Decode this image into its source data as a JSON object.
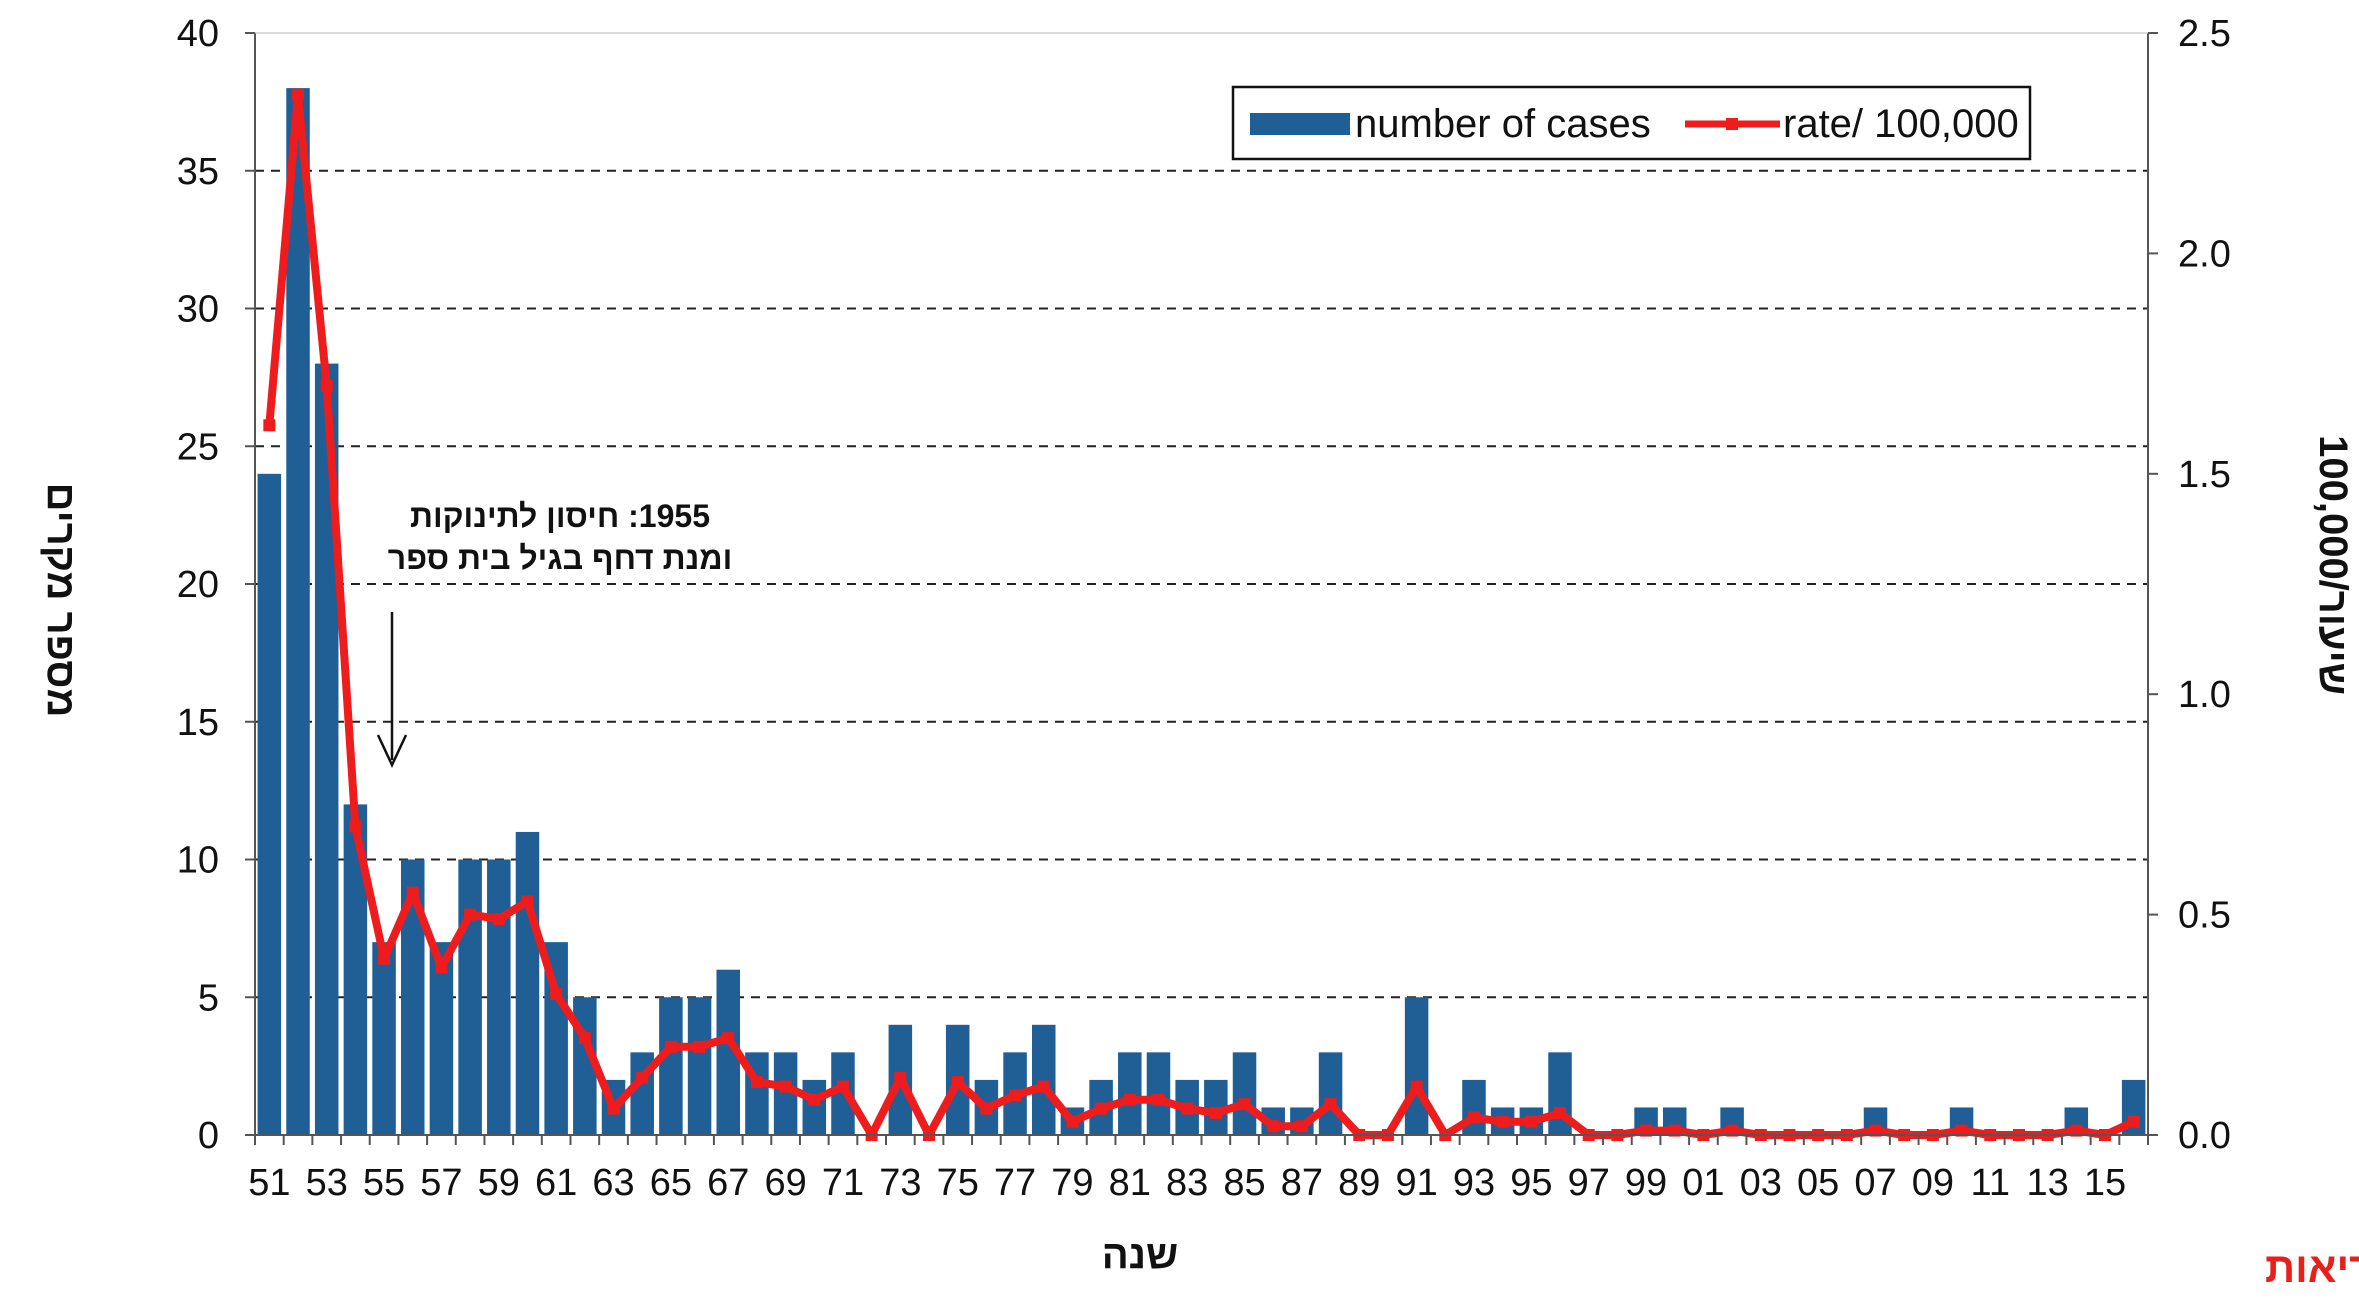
{
  "chart_data": {
    "type": "bar",
    "categories": [
      "51",
      "52",
      "53",
      "54",
      "55",
      "56",
      "57",
      "58",
      "59",
      "60",
      "61",
      "62",
      "63",
      "64",
      "65",
      "66",
      "67",
      "68",
      "69",
      "70",
      "71",
      "72",
      "73",
      "74",
      "75",
      "76",
      "77",
      "78",
      "79",
      "80",
      "81",
      "82",
      "83",
      "84",
      "85",
      "86",
      "87",
      "88",
      "89",
      "90",
      "91",
      "92",
      "93",
      "94",
      "95",
      "96",
      "97",
      "98",
      "99",
      "00",
      "01",
      "02",
      "03",
      "04",
      "05",
      "06",
      "07",
      "08",
      "09",
      "10",
      "11",
      "12",
      "13",
      "14",
      "15",
      "16"
    ],
    "x_tick_labels": [
      "51",
      "53",
      "55",
      "57",
      "59",
      "61",
      "63",
      "65",
      "67",
      "69",
      "71",
      "73",
      "75",
      "77",
      "79",
      "81",
      "83",
      "85",
      "87",
      "89",
      "91",
      "93",
      "95",
      "97",
      "99",
      "01",
      "03",
      "05",
      "07",
      "09",
      "11",
      "13",
      "15"
    ],
    "series": [
      {
        "name": "number of cases",
        "type": "bar",
        "axis": "left",
        "color": "#1f5f96",
        "values": [
          24,
          38,
          28,
          12,
          7,
          10,
          7,
          10,
          10,
          11,
          7,
          5,
          2,
          3,
          5,
          5,
          6,
          3,
          3,
          2,
          3,
          0,
          4,
          0,
          4,
          2,
          3,
          4,
          1,
          2,
          3,
          3,
          2,
          2,
          3,
          1,
          1,
          3,
          0,
          0,
          5,
          0,
          2,
          1,
          1,
          3,
          0,
          0,
          1,
          1,
          0,
          1,
          0,
          0,
          0,
          0,
          1,
          0,
          0,
          1,
          0,
          0,
          0,
          1,
          0,
          2
        ]
      },
      {
        "name": "rate/ 100,000",
        "type": "line",
        "axis": "right",
        "color": "#ee1c1c",
        "values": [
          1.61,
          2.36,
          1.7,
          0.7,
          0.4,
          0.55,
          0.38,
          0.5,
          0.49,
          0.53,
          0.32,
          0.22,
          0.06,
          0.13,
          0.2,
          0.2,
          0.22,
          0.12,
          0.11,
          0.08,
          0.11,
          0.0,
          0.13,
          0.0,
          0.12,
          0.06,
          0.09,
          0.11,
          0.03,
          0.06,
          0.08,
          0.08,
          0.06,
          0.05,
          0.07,
          0.02,
          0.02,
          0.07,
          0.0,
          0.0,
          0.11,
          0.0,
          0.04,
          0.03,
          0.03,
          0.05,
          0.0,
          0.0,
          0.01,
          0.01,
          0.0,
          0.01,
          0.0,
          0.0,
          0.0,
          0.0,
          0.01,
          0.0,
          0.0,
          0.01,
          0.0,
          0.0,
          0.0,
          0.01,
          0.0,
          0.03
        ]
      }
    ],
    "y_left": {
      "label": "מספר מקרים",
      "ylim": [
        0,
        40
      ],
      "ticks": [
        0,
        5,
        10,
        15,
        20,
        25,
        30,
        35,
        40
      ]
    },
    "y_right": {
      "label": "שיעור/100,000",
      "ylim": [
        0,
        2.5
      ],
      "ticks": [
        "0.0",
        "0.5",
        "1.0",
        "1.5",
        "2.0",
        "2.5"
      ]
    },
    "xlabel": "שנה",
    "grid": "horizontal dashed",
    "legend_position": "top-right",
    "annotation": {
      "line1": "1955: חיסון לתינוקות",
      "line2": "ומנת דחף בגיל בית ספר",
      "points_to": "55"
    }
  },
  "source_label": "האגף לאפידמיולוגיה, משרד הבריאות",
  "colors": {
    "bar": "#1f5f96",
    "line": "#ee1c1c",
    "source": "#e8201a"
  }
}
